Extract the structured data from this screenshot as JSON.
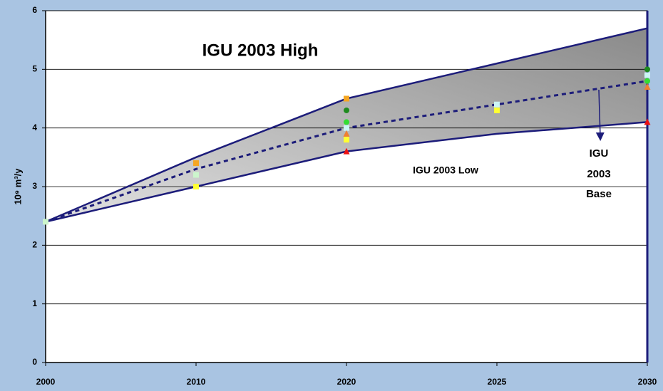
{
  "chart_data": {
    "type": "line",
    "categories": [
      "2000",
      "2010",
      "2020",
      "2025",
      "2030"
    ],
    "ylabel": "10⁹ m³/y",
    "ylim": [
      0,
      6
    ],
    "yticks": [
      0,
      1,
      2,
      3,
      4,
      5,
      6
    ],
    "grid": true,
    "band_fill": [
      "#e2e2e2",
      "#8a8a8a"
    ],
    "lines": [
      {
        "values": [
          2.4,
          3.5,
          4.5,
          5.1,
          5.7
        ],
        "color": "#1c1c7a",
        "dashed": false
      },
      {
        "values": [
          2.4,
          3.0,
          3.6,
          3.9,
          4.1
        ],
        "color": "#1c1c7a",
        "dashed": false
      },
      {
        "values": [
          2.4,
          3.3,
          4.0,
          4.4,
          4.8
        ],
        "color": "#1c1c7a",
        "dashed": true
      }
    ],
    "series": [
      {
        "color": "#f5a623",
        "marker": "square",
        "values": [
          null,
          3.4,
          4.5,
          null,
          null
        ]
      },
      {
        "color": "#ccf5cc",
        "marker": "square",
        "values": [
          2.4,
          3.2,
          null,
          null,
          null
        ]
      },
      {
        "color": "#ffff33",
        "marker": "square",
        "values": [
          null,
          3.0,
          3.8,
          4.3,
          null
        ]
      },
      {
        "color": "#1e8a1e",
        "marker": "circle",
        "values": [
          null,
          null,
          4.3,
          null,
          5.0
        ]
      },
      {
        "color": "#33dd33",
        "marker": "circle",
        "values": [
          null,
          null,
          4.1,
          null,
          4.8
        ]
      },
      {
        "color": "#ccf5f5",
        "marker": "square",
        "values": [
          null,
          null,
          4.0,
          4.4,
          4.9
        ]
      },
      {
        "color": "#f08030",
        "marker": "triangle",
        "values": [
          null,
          null,
          3.9,
          null,
          4.7
        ]
      },
      {
        "color": "#ee1111",
        "marker": "triangle",
        "values": [
          null,
          null,
          3.6,
          null,
          4.1
        ]
      }
    ],
    "annotations": {
      "high": "IGU 2003 High",
      "low": "IGU 2003 Low",
      "base": [
        "IGU",
        "2003",
        "Base"
      ]
    }
  }
}
